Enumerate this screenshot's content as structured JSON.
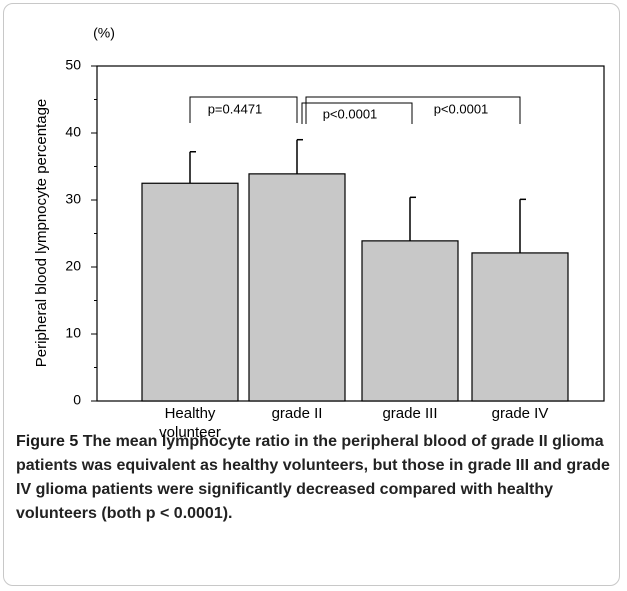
{
  "chart_data": {
    "type": "bar",
    "y_unit": "(%)",
    "y_label": "Peripheral blood lympnocyte percentage",
    "categories": [
      "Healthy volunteer",
      "grade II",
      "grade III",
      "grade IV"
    ],
    "values": [
      32.5,
      33.9,
      23.9,
      22.1
    ],
    "errors": [
      4.7,
      5.1,
      6.5,
      8.0
    ],
    "color": "#c8c8c8",
    "ylim": [
      0,
      50
    ],
    "yticks": [
      0,
      10,
      20,
      30,
      40,
      50
    ],
    "yminor_ticks": [
      5,
      15,
      25,
      35,
      45
    ],
    "annotations": [
      "p=0.4471",
      "p<0.0001",
      "p<0.0001"
    ]
  },
  "caption": {
    "label": "Figure 5",
    "text": "The mean lymphocyte ratio in the peripheral blood of grade II glioma patients was equivalent as healthy volunteers, but those in grade III and grade IV glioma patients were significantly decreased compared with healthy volunteers (both p < 0.0001)."
  }
}
